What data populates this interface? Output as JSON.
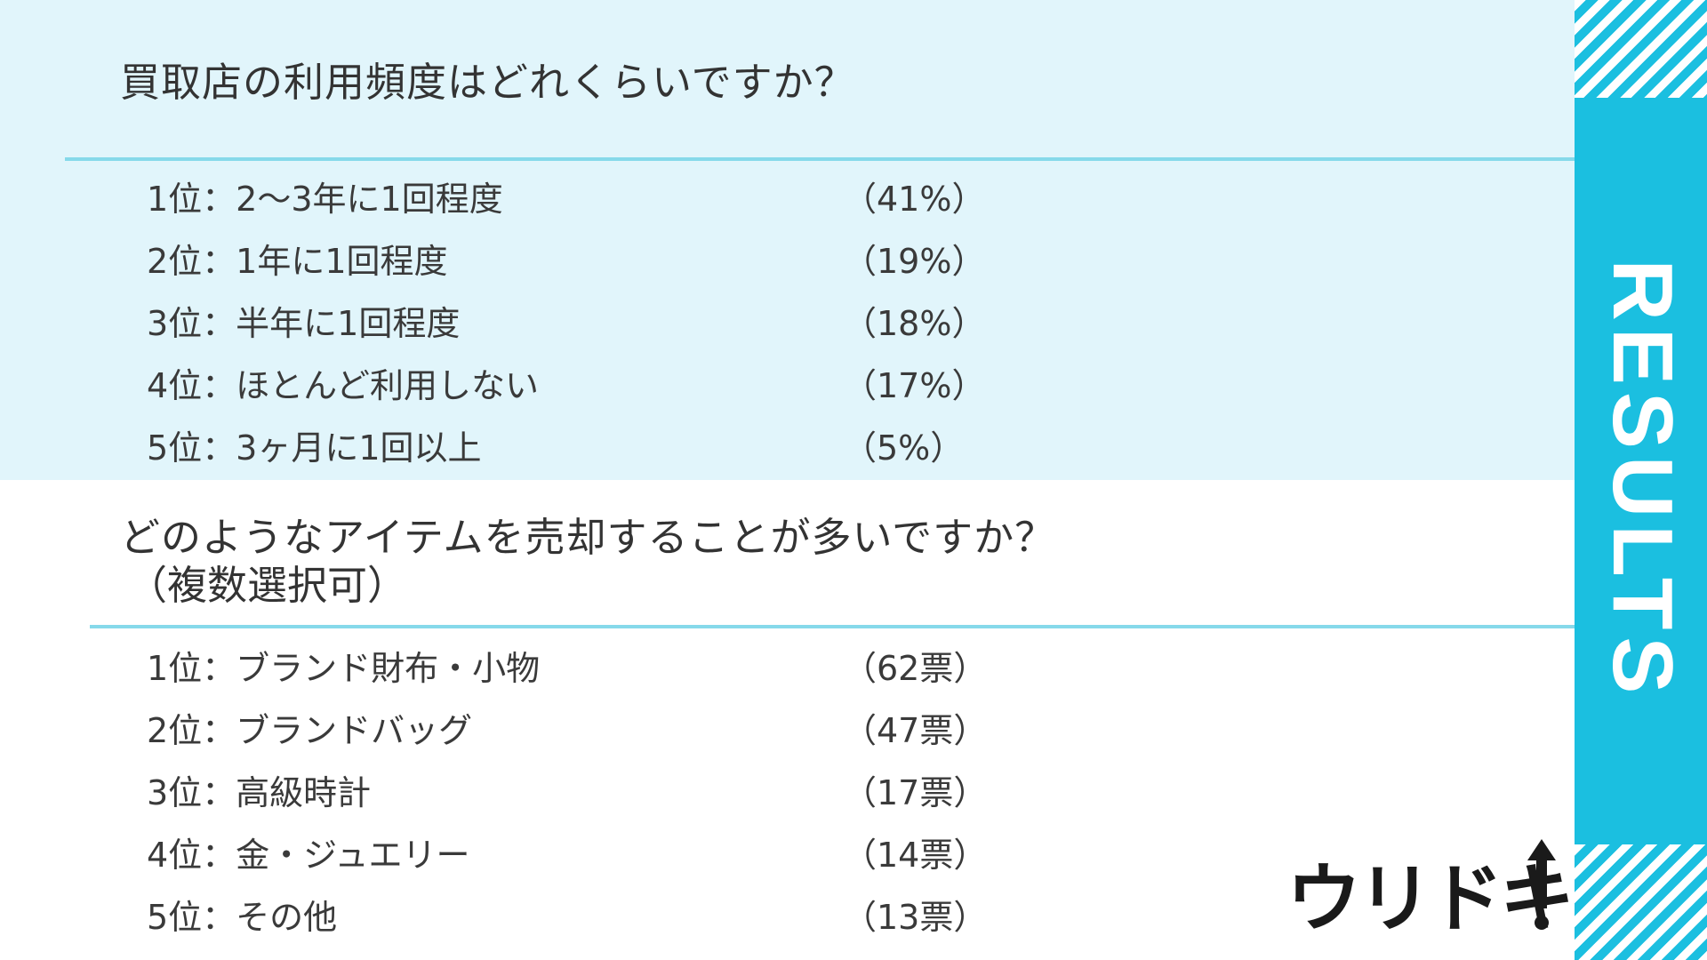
{
  "q1": {
    "title": "買取店の利用頻度はどれくらいですか？",
    "rows": [
      {
        "label": "1位：2〜3年に1回程度",
        "value": "（41%）"
      },
      {
        "label": "2位：1年に1回程度",
        "value": "（19%）"
      },
      {
        "label": "3位：半年に1回程度",
        "value": "（18%）"
      },
      {
        "label": "4位：ほとんど利用しない",
        "value": "（17%）"
      },
      {
        "label": "5位：3ヶ月に1回以上",
        "value": "（5%）"
      }
    ]
  },
  "q2": {
    "title": "どのようなアイテムを売却することが多いですか？",
    "subtitle": "（複数選択可）",
    "rows": [
      {
        "label": "1位：ブランド財布・小物",
        "value": "（62票）"
      },
      {
        "label": "2位：ブランドバッグ",
        "value": "（47票）"
      },
      {
        "label": "3位：高級時計",
        "value": "（17票）"
      },
      {
        "label": "4位：金・ジュエリー",
        "value": "（14票）"
      },
      {
        "label": "5位：その他",
        "value": "（13票）"
      }
    ]
  },
  "side_label": "RESULTS",
  "logo_text": "ウリドキ",
  "colors": {
    "panel_bg": "#e1f5fb",
    "accent": "#1bbfe0",
    "divider": "#86d9ea",
    "text": "#3a3a3a"
  }
}
